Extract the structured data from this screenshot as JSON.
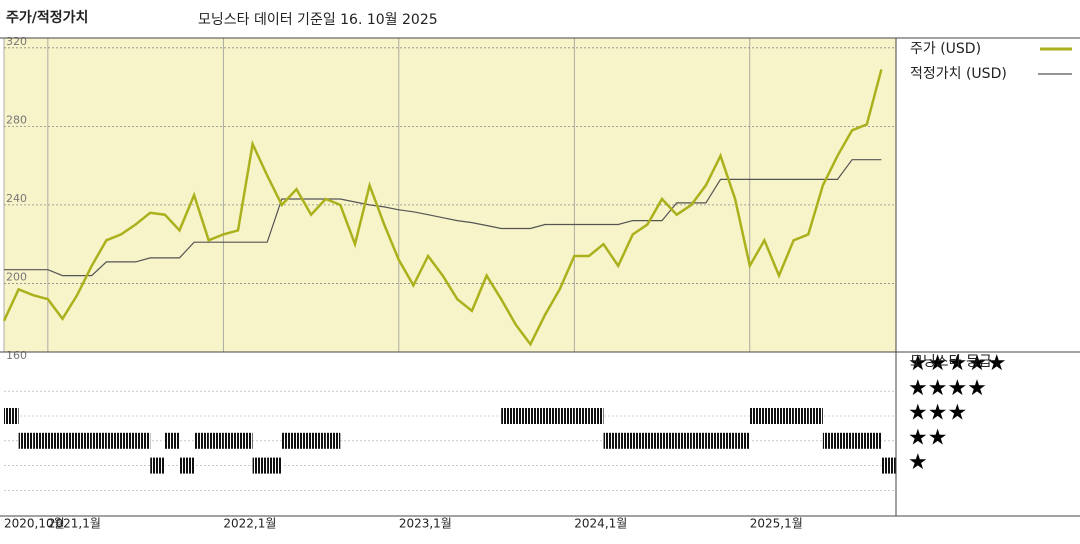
{
  "chart_data": {
    "type": "line",
    "title": "주가/적정가치",
    "subtitle": "모닝스타 데이터 기준일 16. 10월 2025",
    "x": [
      "2020-10",
      "2020-11",
      "2020-12",
      "2021-01",
      "2021-02",
      "2021-03",
      "2021-04",
      "2021-05",
      "2021-06",
      "2021-07",
      "2021-08",
      "2021-09",
      "2021-10",
      "2021-11",
      "2021-12",
      "2022-01",
      "2022-02",
      "2022-03",
      "2022-04",
      "2022-05",
      "2022-06",
      "2022-07",
      "2022-08",
      "2022-09",
      "2022-10",
      "2022-11",
      "2022-12",
      "2023-01",
      "2023-02",
      "2023-03",
      "2023-04",
      "2023-05",
      "2023-06",
      "2023-07",
      "2023-08",
      "2023-09",
      "2023-10",
      "2023-11",
      "2023-12",
      "2024-01",
      "2024-02",
      "2024-03",
      "2024-04",
      "2024-05",
      "2024-06",
      "2024-07",
      "2024-08",
      "2024-09",
      "2024-10",
      "2024-11",
      "2024-12",
      "2025-01",
      "2025-02",
      "2025-03",
      "2025-04",
      "2025-05",
      "2025-06",
      "2025-07",
      "2025-08",
      "2025-09",
      "2025-10"
    ],
    "xlim": [
      "2020-10",
      "2025-11"
    ],
    "xticks": [
      {
        "value": "2020-10",
        "label": "2020,10월"
      },
      {
        "value": "2021-01",
        "label": "2021,1월"
      },
      {
        "value": "2022-01",
        "label": "2022,1월"
      },
      {
        "value": "2023-01",
        "label": "2023,1월"
      },
      {
        "value": "2024-01",
        "label": "2024,1월"
      },
      {
        "value": "2025-01",
        "label": "2025,1월"
      }
    ],
    "ylim": [
      160,
      325
    ],
    "yticks": [
      160,
      200,
      240,
      280,
      320
    ],
    "grid": true,
    "series": [
      {
        "name": "주가 (USD)",
        "color": "#aab11c",
        "values": [
          181,
          197,
          194,
          192,
          182,
          194,
          209,
          222,
          225,
          230,
          236,
          235,
          227,
          245,
          222,
          225,
          227,
          271,
          255,
          240,
          248,
          235,
          243,
          240,
          220,
          250,
          230,
          212,
          199,
          214,
          204,
          192,
          186,
          204,
          192,
          179,
          169,
          184,
          197,
          214,
          214,
          220,
          209,
          225,
          230,
          243,
          235,
          240,
          250,
          265,
          243,
          209,
          222,
          204,
          222,
          225,
          250,
          265,
          278,
          281,
          309
        ]
      },
      {
        "name": "적정가치 (USD)",
        "color": "#555555",
        "values": [
          207,
          207,
          207,
          207,
          204,
          204,
          204,
          211,
          211,
          211,
          213,
          213,
          213,
          221,
          221,
          221,
          221,
          221,
          221,
          243,
          243,
          243,
          243,
          243,
          241.5,
          240,
          239,
          237.5,
          236.5,
          235,
          233.5,
          232,
          231,
          229.5,
          228,
          228,
          228,
          230,
          230,
          230,
          230,
          230,
          230,
          232,
          232,
          232,
          241,
          241,
          241,
          253,
          253,
          253,
          253,
          253,
          253,
          253,
          253,
          253,
          263,
          263,
          263
        ]
      }
    ],
    "rating_title": "모닝스타 등급",
    "ratings": [
      4,
      3,
      3,
      3,
      3,
      3,
      3,
      3,
      3,
      3,
      2,
      3,
      2,
      3,
      3,
      3,
      3,
      2,
      2,
      3,
      3,
      3,
      3,
      null,
      null,
      null,
      null,
      null,
      null,
      null,
      null,
      null,
      null,
      null,
      4,
      4,
      4,
      4,
      4,
      4,
      4,
      3,
      3,
      3,
      3,
      3,
      3,
      3,
      3,
      3,
      3,
      4,
      4,
      4,
      4,
      4,
      3,
      3,
      3,
      3,
      2
    ],
    "rating_legend": [
      {
        "value": 5,
        "label": "★★★★★"
      },
      {
        "value": 4,
        "label": "★★★★"
      },
      {
        "value": 3,
        "label": "★★★"
      },
      {
        "value": 2,
        "label": "★★"
      },
      {
        "value": 1,
        "label": "★"
      }
    ]
  }
}
